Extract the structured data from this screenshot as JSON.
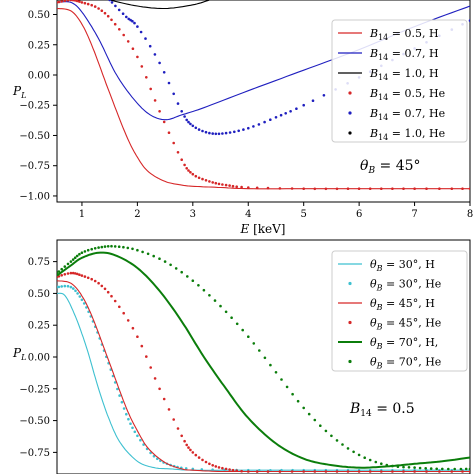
{
  "chart_data": [
    {
      "type": "line",
      "xlabel": "E [keV]",
      "ylabel": "P_L",
      "xlim": [
        0.55,
        8
      ],
      "ylim": [
        -1.05,
        0.62
      ],
      "xticks": [
        "1",
        "2",
        "3",
        "4",
        "5",
        "6",
        "7",
        "8"
      ],
      "yticks": [
        "-1.00",
        "-0.75",
        "-0.50",
        "-0.25",
        "0.00",
        "0.25",
        "0.50"
      ],
      "annotation": "θ_B = 45°",
      "legend_position": "right",
      "series": [
        {
          "name": "B14 = 0.5, H",
          "color": "#d62728",
          "style": "line",
          "x": [
            0.55,
            0.8,
            1.0,
            1.2,
            1.5,
            1.8,
            2.0,
            2.2,
            2.5,
            2.8,
            3.0,
            3.5,
            4,
            5,
            6,
            7,
            8
          ],
          "y": [
            0.55,
            0.53,
            0.42,
            0.22,
            -0.15,
            -0.5,
            -0.68,
            -0.8,
            -0.88,
            -0.91,
            -0.92,
            -0.93,
            -0.94,
            -0.94,
            -0.94,
            -0.94,
            -0.94
          ]
        },
        {
          "name": "B14 = 0.7, H",
          "color": "#1f1fbf",
          "style": "line",
          "x": [
            0.55,
            0.8,
            1.0,
            1.3,
            1.6,
            1.9,
            2.2,
            2.5,
            2.8,
            3.2,
            4,
            5,
            6,
            7,
            8
          ],
          "y": [
            0.6,
            0.6,
            0.52,
            0.3,
            0.02,
            -0.18,
            -0.32,
            -0.37,
            -0.33,
            -0.27,
            -0.13,
            0.04,
            0.21,
            0.4,
            0.57
          ]
        },
        {
          "name": "B14 = 1.0, H",
          "color": "#000000",
          "style": "line",
          "x": [
            1.5,
            2.0,
            2.5,
            3.0,
            3.3
          ],
          "y": [
            0.62,
            0.57,
            0.55,
            0.58,
            0.62
          ]
        },
        {
          "name": "B14 = 0.5, He",
          "color": "#d62728",
          "style": "dots",
          "x": [
            0.55,
            0.8,
            1.0,
            1.3,
            1.6,
            2.0,
            2.4,
            2.8,
            3.0,
            3.3,
            3.6,
            4.0,
            5,
            6,
            7,
            8
          ],
          "y": [
            0.6,
            0.62,
            0.6,
            0.55,
            0.42,
            0.15,
            -0.3,
            -0.7,
            -0.82,
            -0.88,
            -0.91,
            -0.93,
            -0.94,
            -0.94,
            -0.94,
            -0.94
          ]
        },
        {
          "name": "B14 = 0.7, He",
          "color": "#1f1fbf",
          "style": "dots",
          "x": [
            1.5,
            1.8,
            2.0,
            2.4,
            2.8,
            3.0,
            3.3,
            3.6,
            4.0,
            4.5,
            5,
            6,
            7,
            8
          ],
          "y": [
            0.62,
            0.48,
            0.4,
            0.1,
            -0.3,
            -0.42,
            -0.48,
            -0.48,
            -0.44,
            -0.35,
            -0.25,
            -0.02,
            0.22,
            0.45
          ]
        },
        {
          "name": "B14 = 1.0, He",
          "color": "#000000",
          "style": "dots",
          "x": [],
          "y": []
        }
      ]
    },
    {
      "type": "line",
      "xlabel": "",
      "ylabel": "P_L",
      "xlim": [
        0.55,
        8
      ],
      "ylim": [
        -0.92,
        0.92
      ],
      "yticks": [
        "-0.75",
        "-0.50",
        "-0.25",
        "0.00",
        "0.25",
        "0.50",
        "0.75"
      ],
      "annotation": "B14 = 0.5",
      "legend_position": "right",
      "series": [
        {
          "name": "θB = 30°, H",
          "color": "#3ec0d0",
          "style": "line",
          "x": [
            0.55,
            0.7,
            0.9,
            1.1,
            1.3,
            1.5,
            1.7,
            2.0,
            2.3,
            2.6,
            3.0,
            4,
            5,
            6,
            7,
            8
          ],
          "y": [
            0.5,
            0.48,
            0.3,
            0.05,
            -0.25,
            -0.5,
            -0.68,
            -0.82,
            -0.87,
            -0.88,
            -0.89,
            -0.89,
            -0.89,
            -0.89,
            -0.89,
            -0.89
          ]
        },
        {
          "name": "θB = 30°, He",
          "color": "#3ec0d0",
          "style": "dots",
          "x": [
            0.55,
            0.8,
            1.0,
            1.2,
            1.4,
            1.6,
            1.8,
            2.0,
            2.3,
            2.6,
            3.0,
            4,
            5,
            6,
            7,
            8
          ],
          "y": [
            0.55,
            0.55,
            0.45,
            0.28,
            0.05,
            -0.2,
            -0.45,
            -0.62,
            -0.78,
            -0.85,
            -0.88,
            -0.89,
            -0.89,
            -0.89,
            -0.89,
            -0.89
          ]
        },
        {
          "name": "θB = 45°, H",
          "color": "#d62728",
          "style": "line",
          "x": [
            0.55,
            0.8,
            1.0,
            1.2,
            1.5,
            1.8,
            2.0,
            2.2,
            2.5,
            2.8,
            3.0,
            3.5,
            4,
            5,
            6,
            7,
            8
          ],
          "y": [
            0.6,
            0.58,
            0.48,
            0.3,
            -0.05,
            -0.4,
            -0.58,
            -0.72,
            -0.83,
            -0.88,
            -0.89,
            -0.9,
            -0.9,
            -0.9,
            -0.9,
            -0.9,
            -0.9
          ]
        },
        {
          "name": "θB = 45°, He",
          "color": "#d62728",
          "style": "dots",
          "x": [
            0.55,
            0.8,
            1.0,
            1.3,
            1.6,
            2.0,
            2.4,
            2.8,
            3.0,
            3.3,
            3.6,
            4.0,
            5,
            6,
            7,
            8
          ],
          "y": [
            0.63,
            0.66,
            0.64,
            0.58,
            0.44,
            0.16,
            -0.25,
            -0.62,
            -0.75,
            -0.84,
            -0.88,
            -0.9,
            -0.9,
            -0.9,
            -0.9,
            -0.9
          ]
        },
        {
          "name": "θB = 70°, H,",
          "color": "#0b7d0b",
          "style": "line",
          "x": [
            0.55,
            0.8,
            1.0,
            1.3,
            1.6,
            2.0,
            2.4,
            2.8,
            3.2,
            3.6,
            4.0,
            4.5,
            5.0,
            5.5,
            6.0,
            6.5,
            7,
            7.5,
            8
          ],
          "y": [
            0.64,
            0.72,
            0.78,
            0.82,
            0.8,
            0.7,
            0.52,
            0.28,
            0.0,
            -0.25,
            -0.48,
            -0.68,
            -0.8,
            -0.85,
            -0.87,
            -0.86,
            -0.84,
            -0.82,
            -0.79
          ]
        },
        {
          "name": "θB = 70°, He",
          "color": "#0b7d0b",
          "style": "dots",
          "x": [
            0.55,
            0.8,
            1.0,
            1.3,
            1.6,
            2.0,
            2.5,
            3.0,
            3.5,
            4.0,
            4.5,
            5.0,
            5.5,
            6.0,
            6.5,
            7,
            7.5,
            8
          ],
          "y": [
            0.66,
            0.75,
            0.82,
            0.86,
            0.87,
            0.84,
            0.75,
            0.6,
            0.4,
            0.16,
            -0.12,
            -0.4,
            -0.62,
            -0.77,
            -0.85,
            -0.87,
            -0.88,
            -0.88
          ]
        }
      ]
    }
  ],
  "legend_top": [
    {
      "math": "B",
      "sub": "14",
      "rest": " = 0.5, H"
    },
    {
      "math": "B",
      "sub": "14",
      "rest": " = 0.7, H"
    },
    {
      "math": "B",
      "sub": "14",
      "rest": " = 1.0, H"
    },
    {
      "math": "B",
      "sub": "14",
      "rest": " = 0.5, He"
    },
    {
      "math": "B",
      "sub": "14",
      "rest": " = 0.7, He"
    },
    {
      "math": "B",
      "sub": "14",
      "rest": " = 1.0, He"
    }
  ],
  "legend_bottom": [
    {
      "math": "θ",
      "sub": "B",
      "rest": " = 30°, H"
    },
    {
      "math": "θ",
      "sub": "B",
      "rest": " = 30°, He"
    },
    {
      "math": "θ",
      "sub": "B",
      "rest": " = 45°, H"
    },
    {
      "math": "θ",
      "sub": "B",
      "rest": " = 45°, He"
    },
    {
      "math": "θ",
      "sub": "B",
      "rest": " = 70°, H,"
    },
    {
      "math": "θ",
      "sub": "B",
      "rest": " = 70°, He"
    }
  ],
  "labels": {
    "xlabel_top_italic": "E",
    "xlabel_top_unit": " [keV]",
    "ylabel_main": "P",
    "ylabel_sub": "L",
    "ann_top_math": "θ",
    "ann_top_sub": "B",
    "ann_top_rest": " = 45°",
    "ann_bottom_math": "B",
    "ann_bottom_sub": "14",
    "ann_bottom_rest": " = 0.5"
  }
}
